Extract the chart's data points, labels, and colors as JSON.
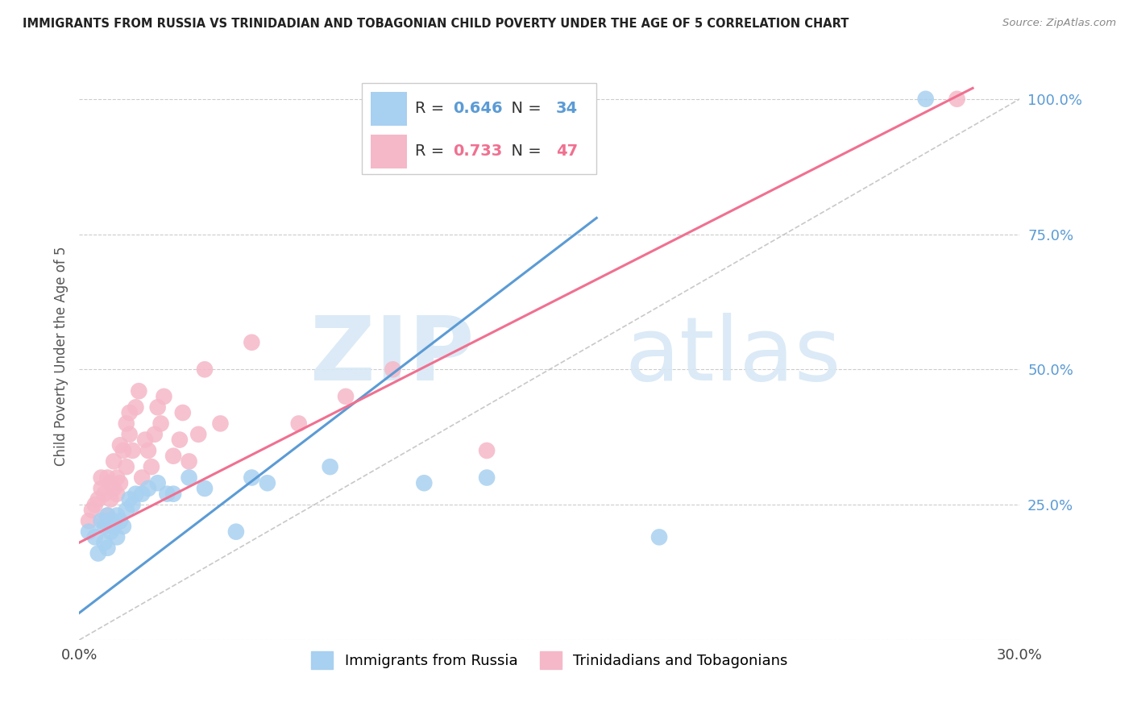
{
  "title": "IMMIGRANTS FROM RUSSIA VS TRINIDADIAN AND TOBAGONIAN CHILD POVERTY UNDER THE AGE OF 5 CORRELATION CHART",
  "source": "Source: ZipAtlas.com",
  "ylabel": "Child Poverty Under the Age of 5",
  "xlim": [
    0.0,
    0.3
  ],
  "ylim": [
    0.0,
    1.05
  ],
  "xtick_positions": [
    0.0,
    0.3
  ],
  "xticklabels": [
    "0.0%",
    "30.0%"
  ],
  "ytick_positions": [
    0.0,
    0.25,
    0.5,
    0.75,
    1.0
  ],
  "ytick_labels": [
    "",
    "25.0%",
    "50.0%",
    "75.0%",
    "100.0%"
  ],
  "blue_R": 0.646,
  "blue_N": 34,
  "pink_R": 0.733,
  "pink_N": 47,
  "blue_color": "#A8D0F0",
  "pink_color": "#F5B8C8",
  "blue_line_color": "#5B9BD5",
  "pink_line_color": "#F07090",
  "ref_line_color": "#BBBBBB",
  "background_color": "#FFFFFF",
  "blue_scatter_x": [
    0.003,
    0.005,
    0.006,
    0.007,
    0.008,
    0.008,
    0.009,
    0.009,
    0.01,
    0.01,
    0.011,
    0.012,
    0.012,
    0.013,
    0.014,
    0.015,
    0.016,
    0.017,
    0.018,
    0.02,
    0.022,
    0.025,
    0.028,
    0.03,
    0.035,
    0.04,
    0.05,
    0.055,
    0.06,
    0.08,
    0.11,
    0.13,
    0.185,
    0.27
  ],
  "blue_scatter_y": [
    0.2,
    0.19,
    0.16,
    0.22,
    0.21,
    0.18,
    0.17,
    0.23,
    0.22,
    0.2,
    0.21,
    0.23,
    0.19,
    0.22,
    0.21,
    0.24,
    0.26,
    0.25,
    0.27,
    0.27,
    0.28,
    0.29,
    0.27,
    0.27,
    0.3,
    0.28,
    0.2,
    0.3,
    0.29,
    0.32,
    0.29,
    0.3,
    0.19,
    1.0
  ],
  "pink_scatter_x": [
    0.003,
    0.004,
    0.005,
    0.006,
    0.007,
    0.007,
    0.008,
    0.008,
    0.009,
    0.009,
    0.01,
    0.01,
    0.011,
    0.011,
    0.012,
    0.012,
    0.013,
    0.013,
    0.014,
    0.015,
    0.015,
    0.016,
    0.016,
    0.017,
    0.018,
    0.019,
    0.02,
    0.021,
    0.022,
    0.023,
    0.024,
    0.025,
    0.026,
    0.027,
    0.03,
    0.032,
    0.033,
    0.035,
    0.038,
    0.04,
    0.045,
    0.055,
    0.07,
    0.085,
    0.1,
    0.13,
    0.28
  ],
  "pink_scatter_y": [
    0.22,
    0.24,
    0.25,
    0.26,
    0.28,
    0.3,
    0.22,
    0.27,
    0.3,
    0.23,
    0.29,
    0.26,
    0.33,
    0.28,
    0.3,
    0.27,
    0.36,
    0.29,
    0.35,
    0.4,
    0.32,
    0.38,
    0.42,
    0.35,
    0.43,
    0.46,
    0.3,
    0.37,
    0.35,
    0.32,
    0.38,
    0.43,
    0.4,
    0.45,
    0.34,
    0.37,
    0.42,
    0.33,
    0.38,
    0.5,
    0.4,
    0.55,
    0.4,
    0.45,
    0.5,
    0.35,
    1.0
  ],
  "blue_line_x": [
    0.0,
    0.165
  ],
  "blue_line_y": [
    0.05,
    0.78
  ],
  "pink_line_x": [
    0.0,
    0.285
  ],
  "pink_line_y": [
    0.18,
    1.02
  ],
  "ref_line_x": [
    0.0,
    0.3
  ],
  "ref_line_y": [
    0.0,
    1.0
  ],
  "legend_blue_label": "R = 0.646   N = 34",
  "legend_pink_label": "R = 0.733   N = 47",
  "bottom_legend_blue": "Immigrants from Russia",
  "bottom_legend_pink": "Trinidadians and Tobagonians",
  "watermark_zip": "ZIP",
  "watermark_atlas": "atlas"
}
